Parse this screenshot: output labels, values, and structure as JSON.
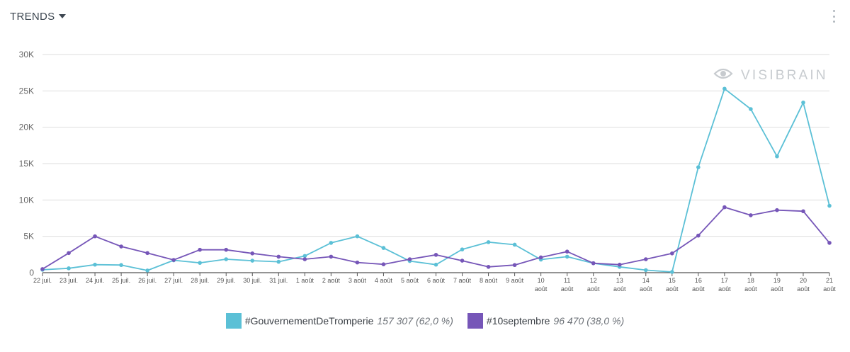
{
  "header": {
    "title": "TRENDS",
    "watermark": "VISIBRAIN"
  },
  "colors": {
    "series1": "#5bc0d6",
    "series2": "#7656b8",
    "grid": "#dddddd",
    "axis": "#555555"
  },
  "legend": [
    {
      "name": "#GouvernementDeTromperie",
      "total": "157 307",
      "pct": "(62,0 %)"
    },
    {
      "name": "#10septembre",
      "total": "96 470",
      "pct": "(38,0 %)"
    }
  ],
  "chart_data": {
    "type": "line",
    "title": "TRENDS",
    "ylim": [
      0,
      30000
    ],
    "yticks": [
      0,
      5000,
      10000,
      15000,
      20000,
      25000,
      30000
    ],
    "ytick_labels": [
      "0",
      "5K",
      "10K",
      "15K",
      "20K",
      "25K",
      "30K"
    ],
    "categories": [
      [
        "22 juil."
      ],
      [
        "23 juil."
      ],
      [
        "24 juil."
      ],
      [
        "25 juil."
      ],
      [
        "26 juil."
      ],
      [
        "27 juil."
      ],
      [
        "28 juil."
      ],
      [
        "29 juil."
      ],
      [
        "30 juil."
      ],
      [
        "31 juil."
      ],
      [
        "1 août"
      ],
      [
        "2 août"
      ],
      [
        "3 août"
      ],
      [
        "4 août"
      ],
      [
        "5 août"
      ],
      [
        "6 août"
      ],
      [
        "7 août"
      ],
      [
        "8 août"
      ],
      [
        "9 août"
      ],
      [
        "10",
        "août"
      ],
      [
        "11",
        "août"
      ],
      [
        "12",
        "août"
      ],
      [
        "13",
        "août"
      ],
      [
        "14",
        "août"
      ],
      [
        "15",
        "août"
      ],
      [
        "16",
        "août"
      ],
      [
        "17",
        "août"
      ],
      [
        "18",
        "août"
      ],
      [
        "19",
        "août"
      ],
      [
        "20",
        "août"
      ],
      [
        "21",
        "août"
      ]
    ],
    "series": [
      {
        "name": "#GouvernementDeTromperie",
        "values": [
          400,
          600,
          1100,
          1050,
          300,
          1700,
          1350,
          1850,
          1650,
          1500,
          2300,
          4100,
          5000,
          3400,
          1600,
          1100,
          3200,
          4200,
          3850,
          1800,
          2200,
          1300,
          800,
          350,
          100,
          14500,
          25300,
          22500,
          16000,
          23400,
          9200
        ]
      },
      {
        "name": "#10septembre",
        "values": [
          500,
          2700,
          5000,
          3600,
          2700,
          1750,
          3150,
          3150,
          2650,
          2200,
          1850,
          2200,
          1400,
          1150,
          1850,
          2450,
          1650,
          800,
          1050,
          2100,
          2900,
          1300,
          1100,
          1850,
          2650,
          5100,
          9000,
          7900,
          8600,
          8450,
          4100
        ]
      }
    ]
  }
}
